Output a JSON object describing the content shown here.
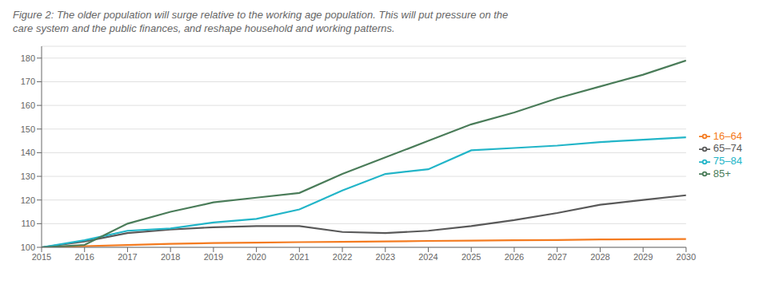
{
  "chart_data": {
    "type": "line",
    "title": "Figure 2: The older population will surge relative to the working age population. This will put pressure on the",
    "subtitle": "care system and the public finances, and reshape household and working patterns.",
    "x": [
      2015,
      2016,
      2017,
      2018,
      2019,
      2020,
      2021,
      2022,
      2023,
      2024,
      2025,
      2026,
      2027,
      2028,
      2029,
      2030
    ],
    "series": [
      {
        "name": "16–64",
        "color": "#F47B20",
        "values": [
          100,
          100.5,
          101.0,
          101.5,
          101.8,
          102.0,
          102.2,
          102.3,
          102.5,
          102.7,
          102.8,
          103.0,
          103.1,
          103.3,
          103.4,
          103.5
        ]
      },
      {
        "name": "65–74",
        "color": "#595959",
        "values": [
          100,
          102.5,
          106,
          107.5,
          108.5,
          109.0,
          109.0,
          106.5,
          106.0,
          107.0,
          109.0,
          111.5,
          114.5,
          118.0,
          120.0,
          122.0
        ]
      },
      {
        "name": "75–84",
        "color": "#22B5C8",
        "values": [
          100,
          103,
          107,
          108,
          110.5,
          112,
          116,
          124,
          131,
          133,
          141,
          142,
          143,
          144.5,
          145.5,
          146.5
        ]
      },
      {
        "name": "85+",
        "color": "#4A7C59",
        "values": [
          100,
          101,
          110,
          115,
          119,
          121,
          123,
          131,
          138,
          145,
          152,
          157,
          163,
          168,
          173,
          179
        ]
      }
    ],
    "xlim": [
      2015,
      2030
    ],
    "xticks": [
      2015,
      2016,
      2017,
      2018,
      2019,
      2020,
      2021,
      2022,
      2023,
      2024,
      2025,
      2026,
      2027,
      2028,
      2029,
      2030
    ],
    "ylim": [
      100,
      185
    ],
    "yticks": [
      100,
      110,
      120,
      130,
      140,
      150,
      160,
      170,
      180
    ],
    "grid": true,
    "legend": "right"
  }
}
